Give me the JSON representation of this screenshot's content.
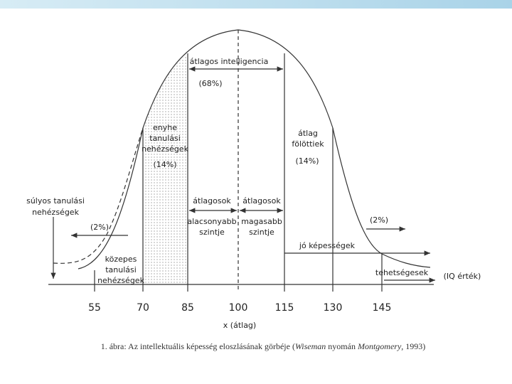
{
  "figure": {
    "middle": {
      "label": "átlagos intelligencia",
      "percent": "(68%)"
    },
    "mild": {
      "lines": [
        "enyhe",
        "tanulási",
        "nehézségek"
      ],
      "percent": "(14%)"
    },
    "above": {
      "lines": [
        "átlag",
        "fölöttiek"
      ],
      "percent": "(14%)"
    },
    "severe": {
      "lines": [
        "súlyos tanulási",
        "nehézségek"
      ],
      "percent": "(2%)"
    },
    "moderate": {
      "lines": [
        "közepes",
        "tanulási",
        "nehézségek"
      ]
    },
    "average_low": {
      "title": "átlagosok",
      "lines": [
        "alacsonyabb",
        "szintje"
      ]
    },
    "average_high": {
      "title": "átlagosok",
      "lines": [
        "magasabb",
        "szintje"
      ]
    },
    "gifted": {
      "percent": "(2%)",
      "label": "tehetségesek"
    },
    "good": {
      "label": "jó képességek"
    },
    "axis": {
      "unit": "(IQ érték)",
      "ticks": [
        "55",
        "70",
        "85",
        "100",
        "115",
        "130",
        "145"
      ],
      "label": "x (átlag)"
    },
    "caption": {
      "parts": [
        "1. ábra: Az intellektuális képesség eloszlásának görbéje (",
        "Wiseman",
        " nyomán ",
        "Montgomery",
        ", 1993)"
      ]
    }
  }
}
